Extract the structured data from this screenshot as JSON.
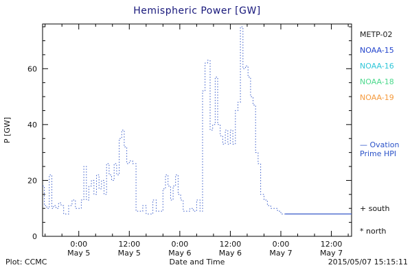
{
  "title": "Hemispheric Power [GW]",
  "colors": {
    "title": "#16167a",
    "axis": "#000000"
  },
  "legend": [
    {
      "label": "METP-02",
      "color": "#1a1a1a"
    },
    {
      "label": "NOAA-15",
      "color": "#2244cc"
    },
    {
      "label": "NOAA-16",
      "color": "#2ec6d8"
    },
    {
      "label": "NOAA-18",
      "color": "#4cd98c"
    },
    {
      "label": "NOAA-19",
      "color": "#f59a3c"
    }
  ],
  "legend2": {
    "lines": [
      "— Ovation",
      "Prime HPI"
    ],
    "color": "#2a52c8"
  },
  "markers": {
    "south": "+ south",
    "north": "* north"
  },
  "footer": {
    "left": "Plot: CCMC",
    "center": "Date and Time",
    "right": "2015/05/07 15:15:11"
  },
  "chart_data": {
    "type": "line",
    "step": true,
    "title": "Hemispheric Power [GW]",
    "xlabel": "Date and Time",
    "ylabel": "P [GW]",
    "ylim": [
      0,
      76
    ],
    "yticks": [
      0,
      20,
      40,
      60
    ],
    "xlim_hours": [
      -8.6,
      64.8
    ],
    "x_unit": "hours from 2015-05-05 00:00",
    "xticks": [
      {
        "h": 0,
        "line1": "0:00",
        "line2": "May 5"
      },
      {
        "h": 12,
        "line1": "12:00",
        "line2": "May 5"
      },
      {
        "h": 24,
        "line1": "0:00",
        "line2": "May 6"
      },
      {
        "h": 36,
        "line1": "12:00",
        "line2": "May 6"
      },
      {
        "h": 48,
        "line1": "0:00",
        "line2": "May 7"
      },
      {
        "h": 60,
        "line1": "12:00",
        "line2": "May 7"
      }
    ],
    "legend_position": "right-outside",
    "grid": false,
    "series": [
      {
        "name": "Ovation Prime HPI",
        "color": "#3558c8",
        "style": "dotted",
        "solid_after_hour": 49,
        "x": [
          -8.6,
          -8.2,
          -7.6,
          -7.0,
          -6.4,
          -6.0,
          -5.4,
          -4.8,
          -4.2,
          -3.6,
          -3.0,
          -2.4,
          -1.6,
          -0.8,
          0.0,
          0.6,
          1.2,
          1.8,
          2.4,
          3.0,
          3.6,
          4.2,
          4.8,
          5.4,
          6.0,
          6.6,
          7.2,
          7.8,
          8.4,
          9.0,
          9.6,
          10.2,
          10.8,
          11.4,
          12.0,
          12.8,
          13.6,
          14.4,
          15.2,
          16.0,
          16.8,
          17.6,
          18.4,
          19.2,
          20.0,
          20.6,
          21.2,
          21.8,
          22.4,
          23.0,
          23.6,
          24.2,
          24.8,
          25.6,
          26.4,
          27.2,
          28.0,
          28.8,
          29.4,
          30.0,
          30.6,
          31.2,
          31.8,
          32.4,
          33.0,
          33.6,
          34.2,
          34.8,
          35.4,
          36.0,
          36.6,
          37.2,
          37.8,
          38.4,
          39.0,
          39.6,
          40.2,
          40.8,
          41.4,
          42.0,
          42.6,
          43.2,
          44.0,
          44.8,
          45.6,
          46.4,
          47.2,
          48.0,
          49.0,
          64.8
        ],
        "y": [
          18,
          11,
          10,
          22,
          10,
          11,
          10,
          12,
          11,
          8,
          8,
          11,
          13,
          10,
          10,
          13,
          25,
          13,
          18,
          20,
          15,
          22,
          17,
          20,
          15,
          26,
          22,
          20,
          26,
          22,
          35,
          38,
          32,
          26,
          27,
          26,
          9,
          9,
          11,
          8,
          8,
          13,
          9,
          9,
          17,
          22,
          18,
          13,
          18,
          22,
          15,
          13,
          9,
          9,
          10,
          9,
          13,
          9,
          52,
          62,
          63,
          38,
          40,
          57,
          40,
          36,
          33,
          38,
          33,
          38,
          33,
          45,
          48,
          75,
          60,
          61,
          57,
          50,
          47,
          30,
          26,
          15,
          13,
          11,
          10,
          10,
          9,
          8,
          8,
          8
        ]
      }
    ]
  }
}
